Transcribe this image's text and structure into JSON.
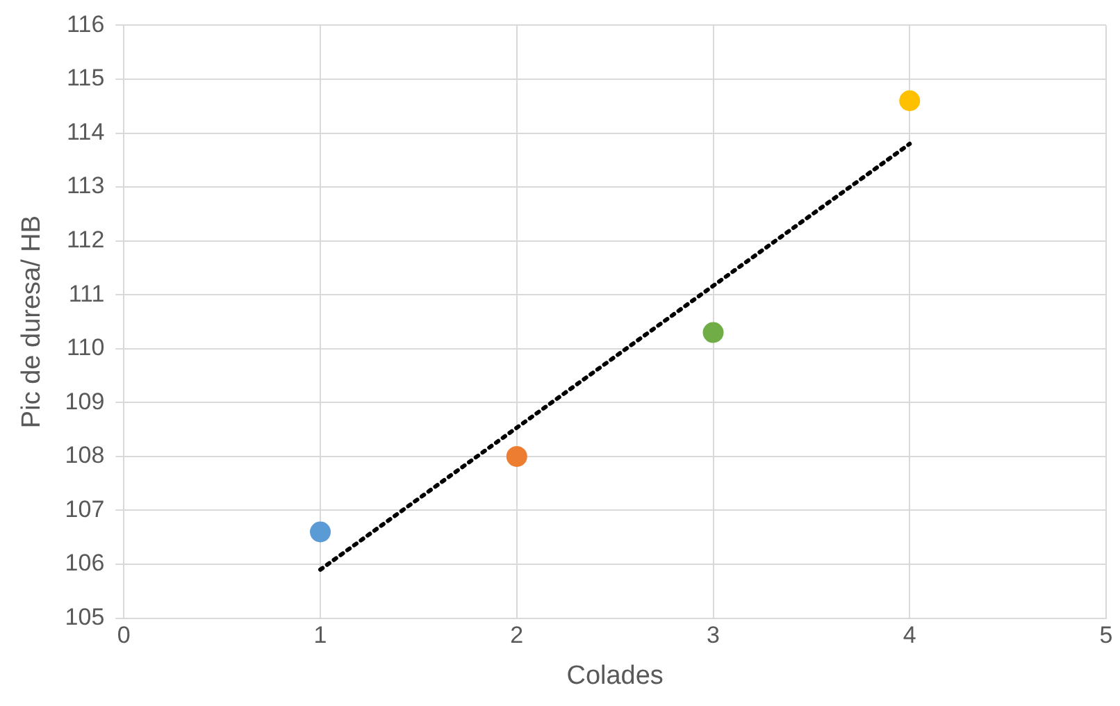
{
  "chart_data": {
    "type": "scatter",
    "xlabel": "Colades",
    "ylabel": "Pic de duresa/ HB",
    "xlim": [
      0,
      5
    ],
    "xticks": [
      0,
      1,
      2,
      3,
      4,
      5
    ],
    "ylim": [
      105,
      116
    ],
    "yticks": [
      105,
      106,
      107,
      108,
      109,
      110,
      111,
      112,
      113,
      114,
      115,
      116
    ],
    "grid": true,
    "legend": false,
    "marker": "circle",
    "series": [
      {
        "x": [
          1,
          2,
          3,
          4
        ],
        "values": [
          106.6,
          108.0,
          110.3,
          114.6
        ],
        "colors": [
          "#5b9bd5",
          "#ed7d31",
          "#70ad47",
          "#ffc000"
        ]
      },
      {
        "type": "line",
        "x": [
          1,
          4
        ],
        "values": [
          105.9,
          113.8
        ],
        "color": "#000000",
        "line_style": "dotted",
        "marker": "none"
      }
    ]
  }
}
